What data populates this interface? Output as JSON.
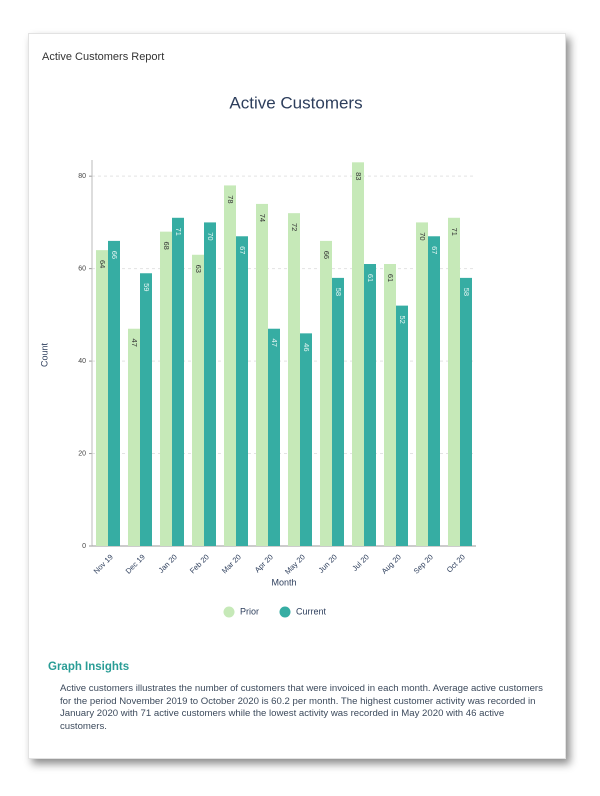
{
  "header": {
    "title": "Active Customers Report"
  },
  "chart_data": {
    "type": "bar",
    "title": "Active Customers",
    "x_label": "Month",
    "y_label": "Count",
    "categories": [
      "Nov 19",
      "Dec 19",
      "Jan 20",
      "Feb 20",
      "Mar 20",
      "Apr 20",
      "May 20",
      "Jun 20",
      "Jul 20",
      "Aug 20",
      "Sep 20",
      "Oct 20"
    ],
    "series": [
      {
        "name": "Prior",
        "color": "#c6e9b8",
        "values": [
          64,
          47,
          68,
          63,
          78,
          74,
          72,
          66,
          83,
          61,
          70,
          71
        ]
      },
      {
        "name": "Current",
        "color": "#36ada3",
        "values": [
          66,
          59,
          71,
          70,
          67,
          47,
          46,
          58,
          61,
          52,
          67,
          58
        ]
      }
    ],
    "ylim": [
      0,
      83.5
    ],
    "yticks": [
      0,
      20,
      40,
      60,
      80
    ],
    "grid": true
  },
  "insights": {
    "title": "Graph Insights",
    "text": "Active customers illustrates the number of customers that were invoiced in each month. Average active customers for the period November 2019 to October 2020 is 60.2 per month. The highest customer activity was recorded in January 2020 with 71 active customers while the lowest activity was recorded in May 2020 with 46 active customers."
  }
}
